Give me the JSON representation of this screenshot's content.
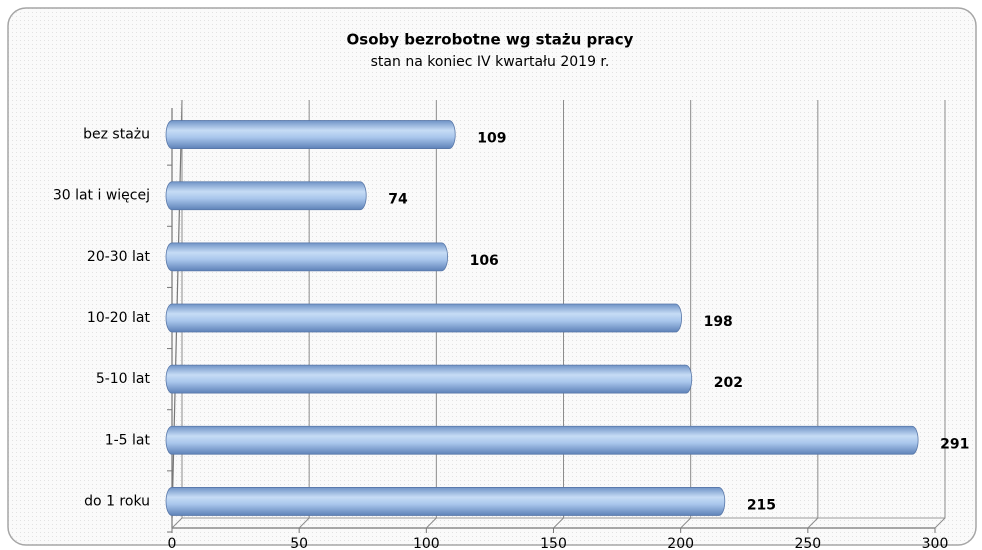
{
  "chart_data": {
    "type": "bar",
    "orientation": "horizontal",
    "title": "Osoby bezrobotne wg stażu pracy",
    "subtitle": "stan na koniec IV kwartału 2019 r.",
    "categories": [
      "bez stażu",
      "30 lat i więcej",
      "20-30 lat",
      "10-20 lat",
      "5-10 lat",
      "1-5 lat",
      "do 1 roku"
    ],
    "values": [
      109,
      74,
      106,
      198,
      202,
      291,
      215
    ],
    "color": "#8eb4e3",
    "xlim": [
      0,
      300
    ],
    "xticks": [
      0,
      50,
      100,
      150,
      200,
      250,
      300
    ],
    "grid": true
  }
}
